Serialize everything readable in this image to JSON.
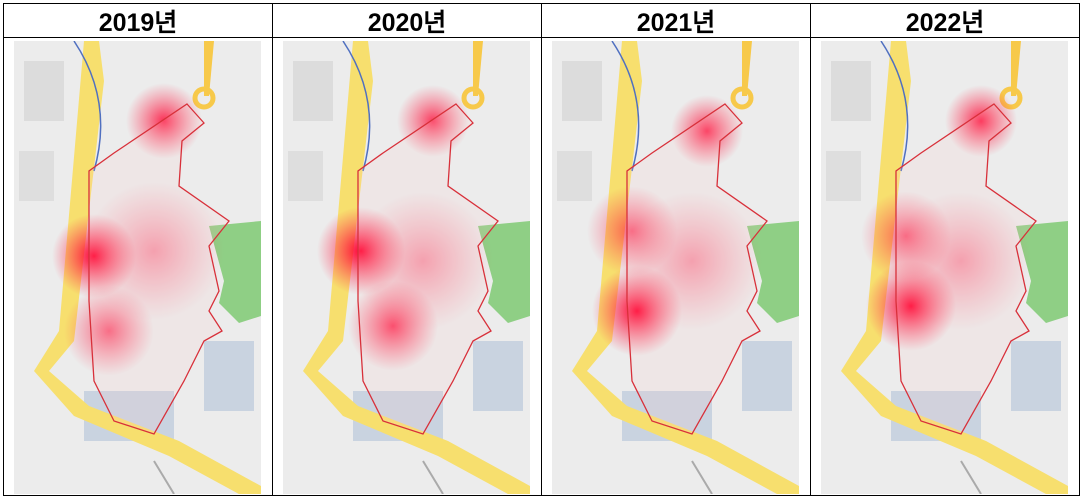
{
  "headers": [
    "2019년",
    "2020년",
    "2021년",
    "2022년"
  ]
}
